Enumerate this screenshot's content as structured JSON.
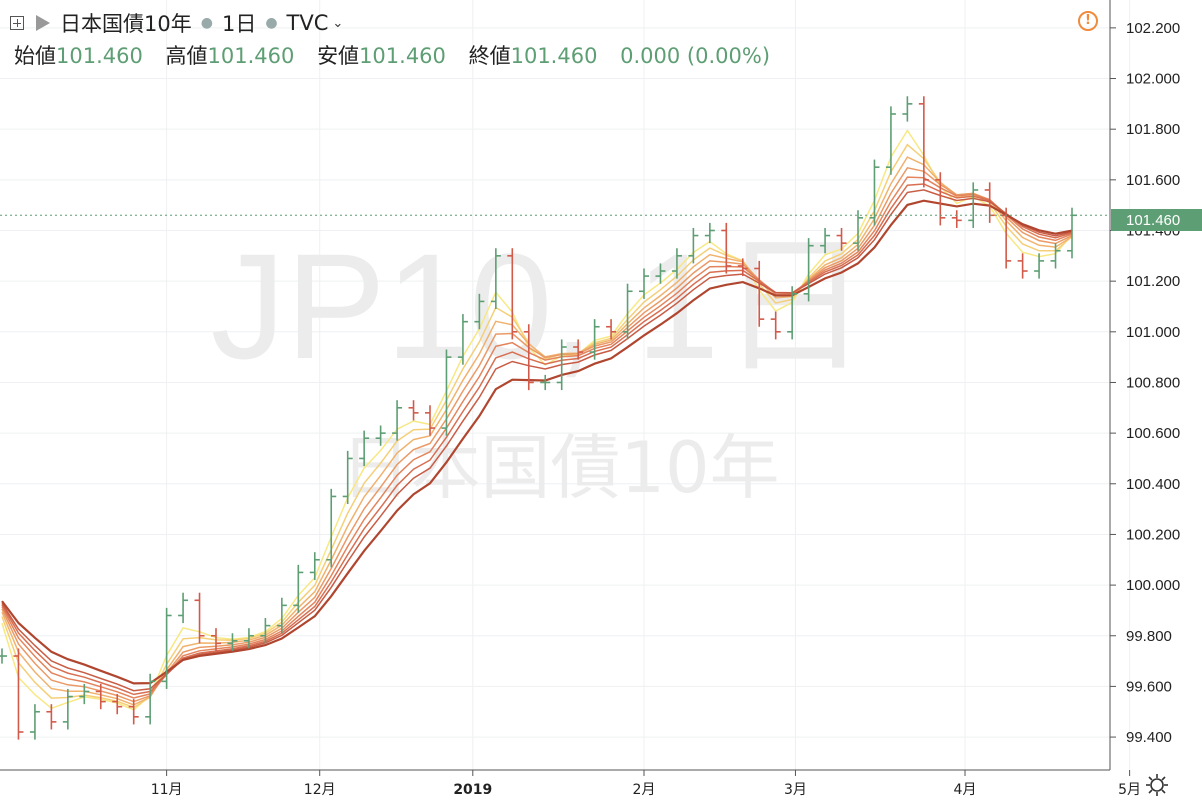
{
  "header": {
    "symbol_name": "日本国債10年",
    "interval": "1日",
    "source": "TVC",
    "ohlc": [
      {
        "label": "始値",
        "value": "101.460"
      },
      {
        "label": "高値",
        "value": "101.460"
      },
      {
        "label": "安値",
        "value": "101.460"
      },
      {
        "label": "終値",
        "value": "101.460"
      }
    ],
    "change": "0.000 (0.00%)"
  },
  "watermark": {
    "symbol": "JP10, 1日",
    "description": "日本国債10年"
  },
  "price_label": "101.460",
  "colors": {
    "up": "#5e9e74",
    "down": "#d25a4a",
    "ribbon": [
      "#f7e884",
      "#f5cf78",
      "#f0b26e",
      "#ea9a66",
      "#e3845d",
      "#d86f52",
      "#c85c45",
      "#b0462f"
    ]
  },
  "chart_data": {
    "type": "line",
    "title": "日本国債10年",
    "xlabel": "",
    "ylabel": "",
    "ylim": [
      99.27,
      102.31
    ],
    "y_ticks": [
      "102.200",
      "102.000",
      "101.800",
      "101.600",
      "101.400",
      "101.200",
      "101.000",
      "100.800",
      "100.600",
      "100.400",
      "100.200",
      "100.000",
      "99.800",
      "99.600",
      "99.400"
    ],
    "x_ticks": [
      "11月",
      "12月",
      "2019",
      "2月",
      "3月",
      "4月",
      "5月"
    ],
    "last_price": 101.46,
    "series": [
      {
        "values": [
          99.72,
          99.42,
          99.5,
          99.46,
          99.56,
          99.58,
          99.54,
          99.52,
          99.48,
          99.62,
          99.88,
          99.94,
          99.8,
          99.77,
          99.78,
          99.8,
          99.84,
          99.92,
          100.05,
          100.1,
          100.35,
          100.5,
          100.58,
          100.6,
          100.7,
          100.68,
          100.62,
          100.9,
          101.04,
          101.12,
          101.3,
          101.0,
          100.8,
          100.8,
          100.94,
          100.92,
          101.02,
          101.0,
          101.16,
          101.22,
          101.24,
          101.3,
          101.38,
          101.4,
          101.26,
          101.25,
          101.05,
          101.0,
          101.15,
          101.34,
          101.38,
          101.35,
          101.45,
          101.65,
          101.86,
          101.9,
          101.6,
          101.45,
          101.44,
          101.56,
          101.46,
          101.28,
          101.24,
          101.28,
          101.32,
          101.46
        ]
      }
    ]
  }
}
